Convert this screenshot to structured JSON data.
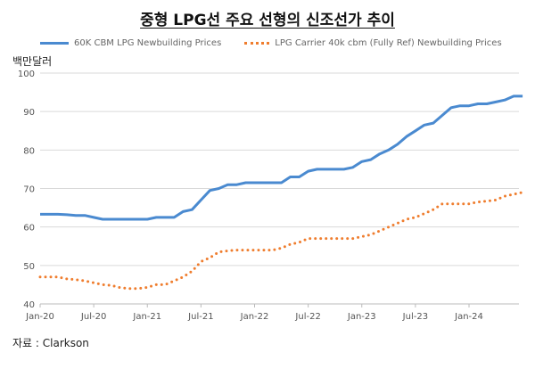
{
  "chart_data": {
    "type": "line",
    "title": "중형 LPG선 주요 선형의 신조선가 추이",
    "ylabel": "백만달러",
    "xlabel": "",
    "ylim": [
      40,
      100
    ],
    "yticks": [
      40,
      50,
      60,
      70,
      80,
      90,
      100
    ],
    "xtick_labels": [
      "Jan-20",
      "Jul-20",
      "Jan-21",
      "Jul-21",
      "Jan-22",
      "Jul-22",
      "Jan-23",
      "Jul-23",
      "Jan-24"
    ],
    "x_start": "Jan-20",
    "x_frequency": "monthly",
    "grid": true,
    "legend_position": "top",
    "series": [
      {
        "name": "60K CBM LPG Newbuilding Prices",
        "color": "#4a8ad0",
        "style": "solid",
        "values": [
          63.3,
          63.3,
          63.3,
          63.2,
          63,
          63,
          62.5,
          62,
          62,
          62,
          62,
          62,
          62,
          62.5,
          62.5,
          62.5,
          64,
          64.5,
          67,
          69.5,
          70,
          71,
          71,
          71.5,
          71.5,
          71.5,
          71.5,
          71.5,
          73,
          73,
          74.5,
          75,
          75,
          75,
          75,
          75.5,
          77,
          77.5,
          79,
          80,
          81.5,
          83.5,
          85,
          86.5,
          87,
          89,
          91,
          91.5,
          91.5,
          92,
          92,
          92.5,
          93,
          94,
          94
        ]
      },
      {
        "name": "LPG Carrier 40k cbm (Fully Ref) Newbuilding Prices",
        "color": "#ef7d2e",
        "style": "dotted",
        "values": [
          47,
          47,
          47,
          46.5,
          46.3,
          46,
          45.5,
          45,
          44.8,
          44.2,
          44,
          44,
          44.3,
          45,
          45,
          46,
          47,
          48.5,
          51,
          52,
          53.5,
          53.8,
          54,
          54,
          54,
          54,
          54,
          54.5,
          55.5,
          56,
          57,
          57,
          57,
          57,
          57,
          57,
          57.5,
          58,
          59,
          60,
          61,
          62,
          62.5,
          63.5,
          64.5,
          66,
          66,
          66,
          66,
          66.5,
          66.7,
          67,
          68,
          68.5,
          69
        ]
      }
    ]
  },
  "source": "자료 : Clarkson"
}
